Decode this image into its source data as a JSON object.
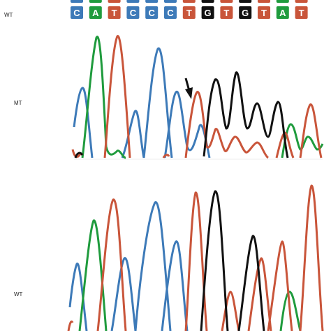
{
  "labels": {
    "top_sequence": "WT",
    "mutant_trace": "MT",
    "wildtype_trace": "WT"
  },
  "sequence": [
    "C",
    "A",
    "T",
    "C",
    "C",
    "C",
    "T",
    "G",
    "T",
    "G",
    "T",
    "A",
    "T"
  ],
  "colors": {
    "A": "#1f9b3d",
    "C": "#3d7ab8",
    "G": "#111111",
    "T": "#c9553a",
    "background": "#ffffff",
    "arrow": "#111111"
  },
  "icons": {
    "mutation_marker": "arrow-down-icon"
  }
}
